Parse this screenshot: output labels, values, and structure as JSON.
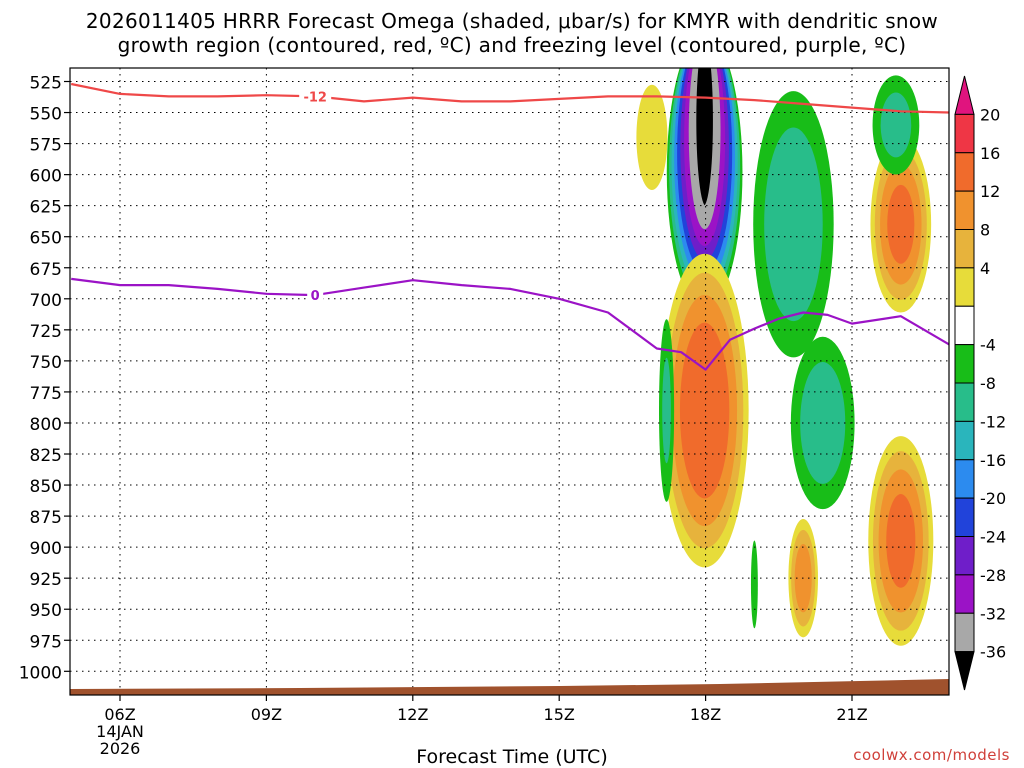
{
  "title_line1": "2026011405 HRRR Forecast Omega (shaded, μbar/s) for KMYR with dendritic snow",
  "title_line2": "growth region (contoured, red, ºC) and freezing level (contoured, purple, ºC)",
  "credit": "coolwx.com/models",
  "chart_data": {
    "type": "time-height cross section",
    "xlabel": "Forecast Time (UTC)",
    "x_ticks": [
      {
        "hour": 6,
        "label": "06Z",
        "sub": [
          "14JAN",
          "2026"
        ]
      },
      {
        "hour": 9,
        "label": "09Z"
      },
      {
        "hour": 12,
        "label": "12Z"
      },
      {
        "hour": 15,
        "label": "15Z"
      },
      {
        "hour": 18,
        "label": "18Z"
      },
      {
        "hour": 21,
        "label": "21Z"
      }
    ],
    "xlim": [
      5,
      23
    ],
    "ylabel": "",
    "y_ticks": [
      525,
      550,
      575,
      600,
      625,
      650,
      675,
      700,
      725,
      750,
      775,
      800,
      825,
      850,
      875,
      900,
      925,
      950,
      975,
      1000
    ],
    "ylim": [
      1011,
      517
    ],
    "grid": true,
    "colorbar": {
      "labels": [
        "20",
        "16",
        "12",
        "8",
        "4",
        "-4",
        "-8",
        "-12",
        "-16",
        "-20",
        "-24",
        "-28",
        "-32",
        "-36"
      ],
      "bins": [
        {
          "color": "#e0147e",
          "triangle": true
        },
        {
          "color": "#ef3645"
        },
        {
          "color": "#f06b2c"
        },
        {
          "color": "#f0922e"
        },
        {
          "color": "#e7b33c"
        },
        {
          "color": "#e7dc3a"
        },
        {
          "color": "#ffffff"
        },
        {
          "color": "#18bd18"
        },
        {
          "color": "#28bd8a"
        },
        {
          "color": "#2ab5bc"
        },
        {
          "color": "#2c8bef"
        },
        {
          "color": "#2143da"
        },
        {
          "color": "#6f1ec9"
        },
        {
          "color": "#9b13c6"
        },
        {
          "color": "#a8a8a8"
        },
        {
          "color": "#000000",
          "triangle": true
        }
      ]
    },
    "terrain_color": "#a0522d",
    "contours": [
      {
        "label": "-12",
        "color": "#ef4848",
        "label_at": {
          "hour": 10,
          "p": 537
        },
        "points": [
          [
            5,
            527
          ],
          [
            6,
            535
          ],
          [
            7,
            537
          ],
          [
            8,
            537
          ],
          [
            9,
            536
          ],
          [
            10,
            537
          ],
          [
            11,
            541
          ],
          [
            12,
            538
          ],
          [
            13,
            541
          ],
          [
            14,
            541
          ],
          [
            15,
            539
          ],
          [
            16,
            537
          ],
          [
            17,
            537
          ],
          [
            18,
            538
          ],
          [
            19,
            540
          ],
          [
            20,
            543
          ],
          [
            21,
            546
          ],
          [
            22,
            549
          ],
          [
            23,
            550
          ]
        ]
      },
      {
        "label": "0",
        "color": "#9b13c6",
        "label_at": {
          "hour": 10,
          "p": 697
        },
        "points": [
          [
            5,
            684
          ],
          [
            6,
            689
          ],
          [
            7,
            689
          ],
          [
            8,
            692
          ],
          [
            9,
            696
          ],
          [
            10,
            697
          ],
          [
            11,
            691
          ],
          [
            12,
            685
          ],
          [
            13,
            689
          ],
          [
            14,
            692
          ],
          [
            15,
            700
          ],
          [
            16,
            711
          ],
          [
            17,
            740
          ],
          [
            17.5,
            743
          ],
          [
            18,
            757
          ],
          [
            18.5,
            733
          ],
          [
            19,
            724
          ],
          [
            19.5,
            716
          ],
          [
            20,
            711
          ],
          [
            20.5,
            713
          ],
          [
            21,
            720
          ],
          [
            22,
            714
          ],
          [
            23,
            737
          ]
        ]
      }
    ],
    "omega_features": [
      {
        "v": -36,
        "hour": 17.98,
        "p": 597,
        "rx": 0.82,
        "ry": 118,
        "top_clip": 519
      },
      {
        "v": 19.5,
        "hour": 17.98,
        "p": 790,
        "rx": 1.0,
        "ry": 140
      },
      {
        "v": -10.5,
        "hour": 19.8,
        "p": 640,
        "rx": 1.0,
        "ry": 130
      },
      {
        "v": -10,
        "hour": 20.4,
        "p": 800,
        "rx": 0.8,
        "ry": 85
      },
      {
        "v": 17,
        "hour": 22.0,
        "p": 640,
        "rx": 0.7,
        "ry": 80
      },
      {
        "v": 17,
        "hour": 22.0,
        "p": 895,
        "rx": 0.75,
        "ry": 95
      },
      {
        "v": 14,
        "hour": 20.0,
        "p": 925,
        "rx": 0.35,
        "ry": 55
      },
      {
        "v": -8,
        "hour": 17.2,
        "p": 790,
        "rx": 0.2,
        "ry": 95
      },
      {
        "v": -6,
        "hour": 19.0,
        "p": 930,
        "rx": 0.1,
        "ry": 50
      },
      {
        "v": 6,
        "hour": 16.9,
        "p": 570,
        "rx": 0.45,
        "ry": 60
      },
      {
        "v": -9,
        "hour": 21.9,
        "p": 560,
        "rx": 0.6,
        "ry": 50
      }
    ]
  }
}
